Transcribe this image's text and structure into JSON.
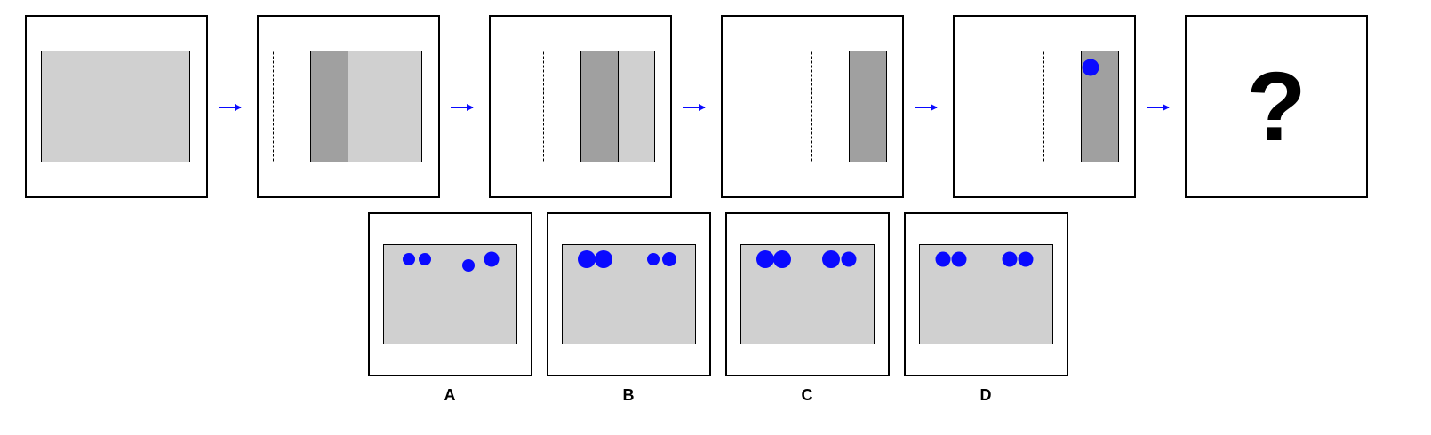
{
  "colors": {
    "panel_border": "#000000",
    "sheet_fill": "#d0d0d0",
    "fold_fill": "#a0a0a0",
    "dot_fill": "#0a0aff",
    "arrow": "#0a0aff",
    "background": "#ffffff"
  },
  "sequence": {
    "steps": [
      {
        "state": "full sheet",
        "punch": false
      },
      {
        "state": "left third folded onto middle",
        "punch": false
      },
      {
        "state": "right third folded",
        "punch": false
      },
      {
        "state": "folded to one layer",
        "punch": false
      },
      {
        "state": "hole punched at top",
        "punch": true
      }
    ],
    "arrow_icon": "right-arrow-icon",
    "unknown_symbol": "?"
  },
  "options": [
    {
      "label": "A",
      "dots": [
        {
          "size": "small"
        },
        {
          "size": "small"
        },
        {
          "size": "small",
          "offset": "lower"
        },
        {
          "size": "large"
        }
      ]
    },
    {
      "label": "B",
      "dots": [
        {
          "size": "large"
        },
        {
          "size": "large"
        },
        {
          "size": "small"
        },
        {
          "size": "small"
        }
      ]
    },
    {
      "label": "C",
      "dots": [
        {
          "size": "large"
        },
        {
          "size": "large"
        },
        {
          "size": "large"
        },
        {
          "size": "medium"
        }
      ]
    },
    {
      "label": "D",
      "dots": [
        {
          "size": "medium"
        },
        {
          "size": "medium"
        },
        {
          "size": "medium"
        },
        {
          "size": "medium"
        }
      ]
    }
  ]
}
